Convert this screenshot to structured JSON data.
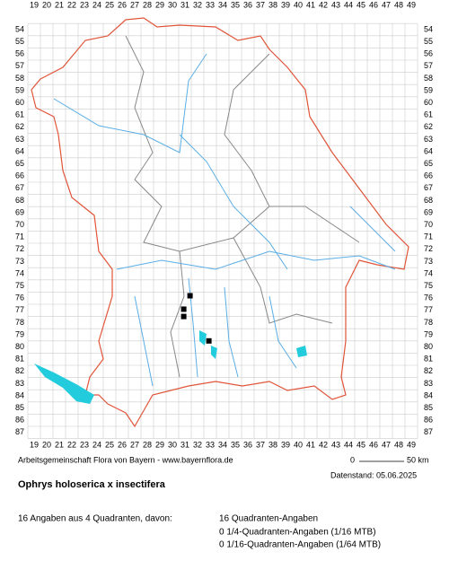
{
  "map": {
    "col_labels": [
      19,
      20,
      21,
      22,
      23,
      24,
      25,
      26,
      27,
      28,
      29,
      30,
      31,
      32,
      33,
      34,
      35,
      36,
      37,
      38,
      39,
      40,
      41,
      42,
      43,
      44,
      45,
      46,
      47,
      48,
      49
    ],
    "row_labels": [
      54,
      55,
      56,
      57,
      58,
      59,
      60,
      61,
      62,
      63,
      64,
      65,
      66,
      67,
      68,
      69,
      70,
      71,
      72,
      73,
      74,
      75,
      76,
      77,
      78,
      79,
      80,
      81,
      82,
      83,
      84,
      85,
      86,
      87
    ],
    "occurrences": [
      {
        "x": 31.4,
        "y": 75.8
      },
      {
        "x": 30.9,
        "y": 76.9
      },
      {
        "x": 30.9,
        "y": 77.5
      },
      {
        "x": 32.9,
        "y": 79.5
      }
    ],
    "scale_start": "0",
    "scale_end": "50 km"
  },
  "footer": {
    "credit": "Arbeitsgemeinschaft Flora von Bayern - www.bayernflora.de",
    "date": "Datenstand: 05.06.2025",
    "title": "Ophrys holoserica x insectifera",
    "summary": "16 Angaben aus 4 Quadranten, davon:",
    "details": [
      "16 Quadranten-Angaben",
      "0 1/4-Quadranten-Angaben (1/16 MTB)",
      "0 1/16-Quadranten-Angaben (1/64 MTB)"
    ]
  }
}
